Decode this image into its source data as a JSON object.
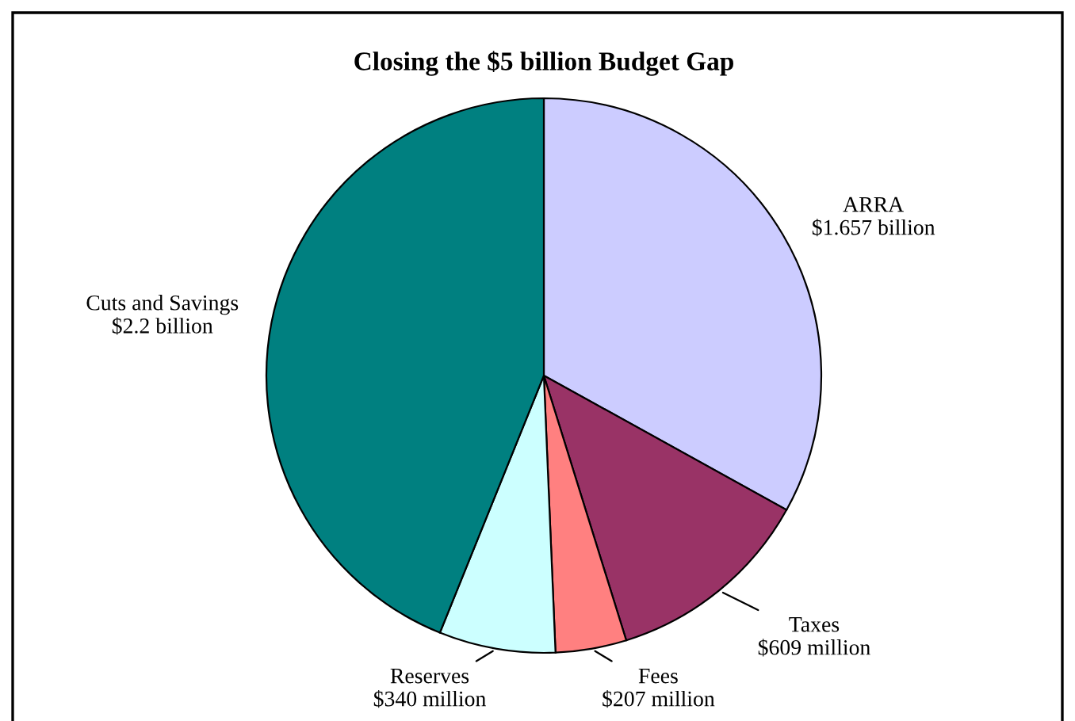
{
  "chart_data": {
    "type": "pie",
    "title": "Closing the $5 billion Budget Gap",
    "categories": [
      "ARRA\n$1.657 billion",
      "Taxes\n$609 million",
      "Fees\n$207 million",
      "Reserves\n$340 million",
      "Cuts and Savings\n$2.2 billion"
    ],
    "values": [
      33.05,
      12.15,
      4.13,
      6.78,
      43.89
    ],
    "colors": [
      "#ccccff",
      "#993366",
      "#ff8080",
      "#ccffff",
      "#008080"
    ],
    "legend": false
  }
}
